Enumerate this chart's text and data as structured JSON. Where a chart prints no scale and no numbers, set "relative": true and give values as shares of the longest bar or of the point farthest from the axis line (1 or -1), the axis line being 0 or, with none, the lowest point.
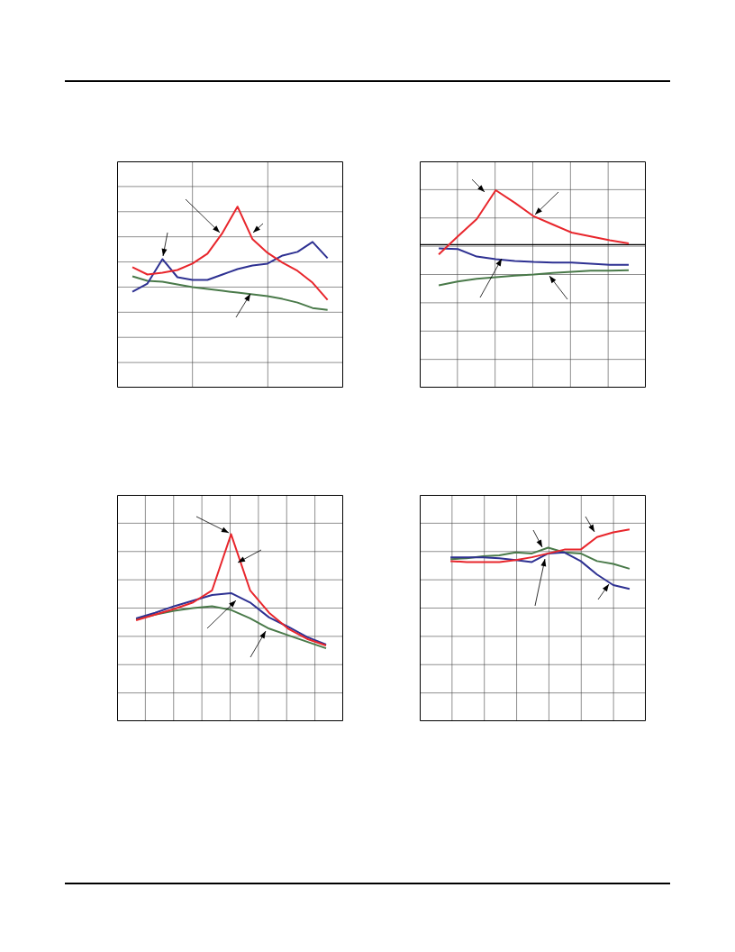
{
  "chart_data": [
    {
      "type": "line",
      "relative": true,
      "grid": true,
      "categories": [
        null,
        null,
        null,
        null,
        null,
        null,
        null,
        null,
        null,
        null,
        null,
        null,
        null,
        null
      ],
      "series": [
        {
          "color": "#e8262c",
          "values": [
            0.665,
            0.625,
            0.635,
            0.65,
            0.685,
            0.74,
            0.855,
            1,
            0.82,
            0.745,
            0.69,
            0.645,
            0.58,
            0.485
          ]
        },
        {
          "color": "#2e3192",
          "values": [
            0.53,
            0.575,
            0.71,
            0.61,
            0.595,
            0.595,
            0.625,
            0.655,
            0.675,
            0.685,
            0.73,
            0.75,
            0.805,
            0.715
          ]
        },
        {
          "color": "#4a7a4a",
          "values": [
            0.615,
            0.59,
            0.585,
            0.57,
            0.555,
            0.545,
            0.535,
            0.525,
            0.515,
            0.505,
            0.49,
            0.47,
            0.44,
            0.43
          ]
        }
      ]
    },
    {
      "type": "line",
      "relative": true,
      "grid": true,
      "categories": [
        null,
        null,
        null,
        null,
        null,
        null,
        null,
        null,
        null,
        null,
        null
      ],
      "series": [
        {
          "color": "#e8262c",
          "values": [
            -0.18,
            0.15,
            0.47,
            1,
            0.77,
            0.52,
            0.37,
            0.22,
            0.15,
            0.08,
            0.02
          ]
        },
        {
          "color": "#2e3192",
          "values": [
            -0.07,
            -0.08,
            -0.22,
            -0.27,
            -0.3,
            -0.32,
            -0.33,
            -0.33,
            -0.35,
            -0.37,
            -0.37
          ]
        },
        {
          "color": "#4a7a4a",
          "values": [
            -0.75,
            -0.68,
            -0.63,
            -0.6,
            -0.57,
            -0.55,
            -0.52,
            -0.5,
            -0.48,
            -0.48,
            -0.47
          ]
        }
      ]
    },
    {
      "type": "line",
      "relative": true,
      "grid": true,
      "categories": [
        null,
        null,
        null,
        null,
        null,
        null,
        null,
        null,
        null,
        null,
        null
      ],
      "series": [
        {
          "color": "#e8262c",
          "values": [
            0.54,
            0.57,
            0.6,
            0.635,
            0.7,
            1,
            0.7,
            0.58,
            0.495,
            0.44,
            0.405
          ]
        },
        {
          "color": "#2e3192",
          "values": [
            0.55,
            0.58,
            0.615,
            0.645,
            0.675,
            0.685,
            0.635,
            0.555,
            0.505,
            0.45,
            0.41
          ]
        },
        {
          "color": "#4a7a4a",
          "values": [
            0.545,
            0.57,
            0.59,
            0.605,
            0.615,
            0.595,
            0.55,
            0.495,
            0.46,
            0.425,
            0.39
          ]
        }
      ]
    },
    {
      "type": "line",
      "relative": true,
      "grid": true,
      "categories": [
        null,
        null,
        null,
        null,
        null,
        null,
        null,
        null,
        null,
        null,
        null,
        null
      ],
      "series": [
        {
          "color": "#e8262c",
          "values": [
            0.835,
            0.83,
            0.83,
            0.83,
            0.84,
            0.855,
            0.875,
            0.895,
            0.895,
            0.96,
            0.985,
            1
          ]
        },
        {
          "color": "#2e3192",
          "values": [
            0.855,
            0.855,
            0.855,
            0.85,
            0.84,
            0.83,
            0.875,
            0.88,
            0.835,
            0.765,
            0.71,
            0.69
          ]
        },
        {
          "color": "#4a7a4a",
          "values": [
            0.845,
            0.85,
            0.86,
            0.865,
            0.88,
            0.875,
            0.905,
            0.88,
            0.875,
            0.835,
            0.82,
            0.795
          ]
        }
      ]
    }
  ]
}
